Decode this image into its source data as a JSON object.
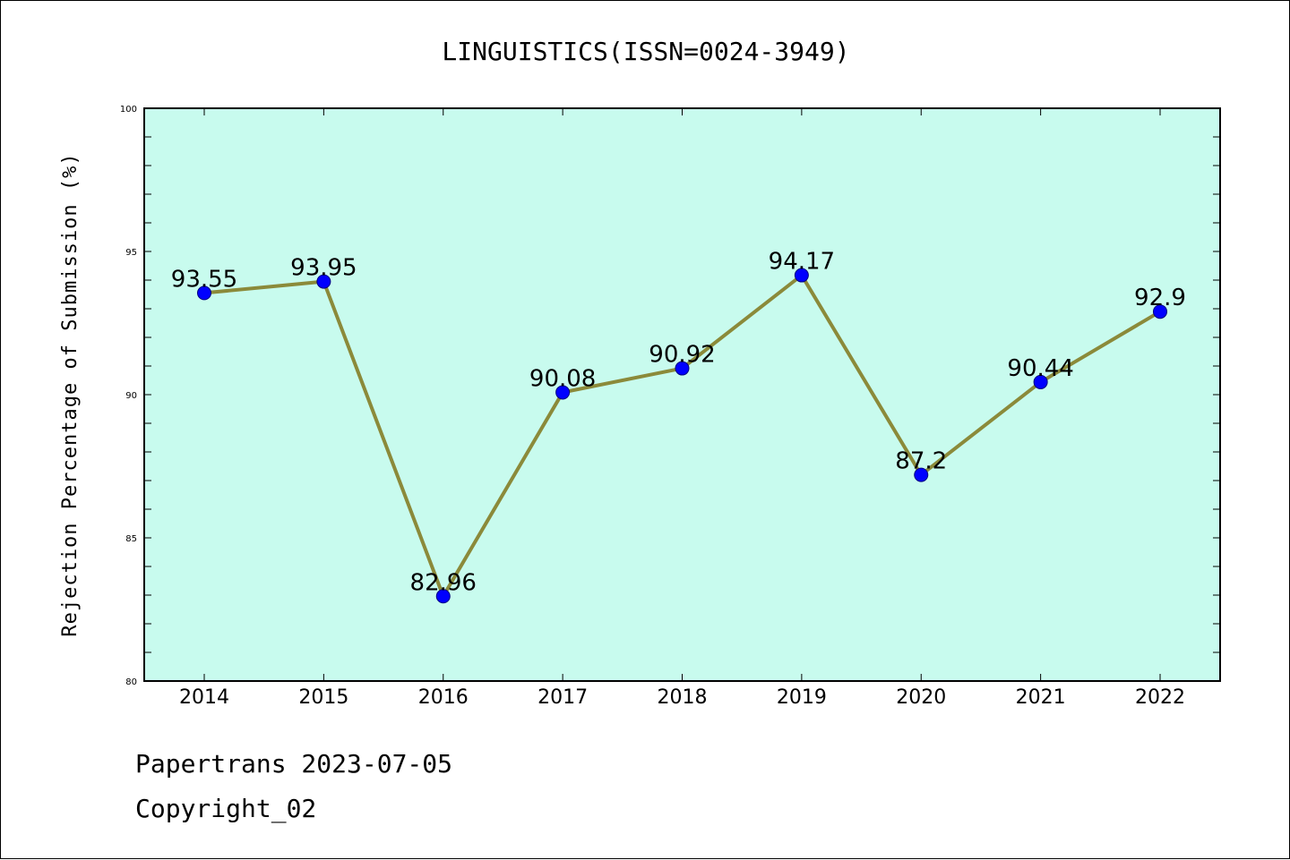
{
  "colors": {
    "plot_background": "#c8fbee",
    "line": "#8b8a3a",
    "marker": "#0000ff",
    "marker_edge": "#000080",
    "axis": "#000000"
  },
  "chart_data": {
    "type": "line",
    "title": "LINGUISTICS(ISSN=0024-3949)",
    "xlabel": "",
    "ylabel": "Rejection Percentage of Submission (%)",
    "categories": [
      "2014",
      "2015",
      "2016",
      "2017",
      "2018",
      "2019",
      "2020",
      "2021",
      "2022"
    ],
    "series": [
      {
        "values": [
          93.55,
          93.95,
          82.96,
          90.08,
          90.92,
          94.17,
          87.2,
          90.44,
          92.9
        ],
        "data_labels": [
          "93.55",
          "93.95",
          "82.96",
          "90.08",
          "90.92",
          "94.17",
          "87.2",
          "90.44",
          "92.9"
        ]
      }
    ],
    "ylim": [
      80,
      100
    ],
    "yticks": [
      "80",
      "85",
      "90",
      "95",
      "100"
    ],
    "grid": false,
    "legend": "none"
  },
  "footer": {
    "line1": "Papertrans 2023-07-05",
    "line2": "Copyright_02"
  }
}
